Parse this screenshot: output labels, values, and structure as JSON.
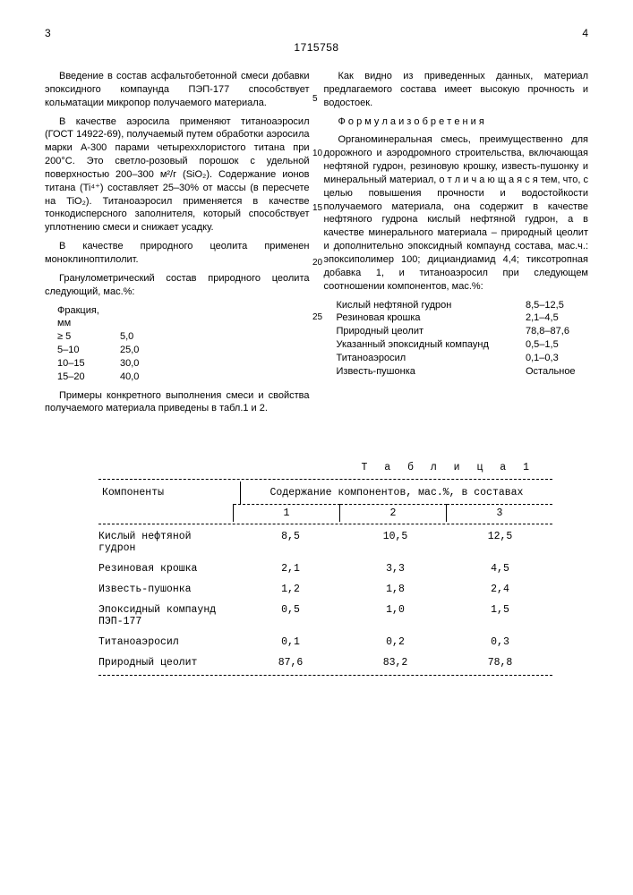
{
  "doc": {
    "page_left": "3",
    "page_right": "4",
    "doc_number": "1715758"
  },
  "line_marks": [
    "5",
    "10",
    "15",
    "20",
    "25"
  ],
  "left_col": {
    "p1": "Введение в состав асфальтобетонной смеси добавки эпоксидного компаунда ПЭП-177 способствует кольматации микропор получаемого материала.",
    "p2": "В качестве аэросила применяют титаноаэросил (ГОСТ 14922-69), получаемый путем обработки аэросила марки А-300 парами четыреххлористого титана при 200°С. Это светло-розовый порошок с удельной поверхностью 200–300 м²/г (SiO₂). Содержание ионов титана (Ti⁴⁺) составляет 25–30% от массы (в пересчете на TiO₂). Титаноаэросил применяется в качестве тонкодисперсного заполнителя, который способствует уплотнению смеси и снижает усадку.",
    "p3": "В качестве природного цеолита применен моноклиноптилолит.",
    "p4": "Гранулометрический состав природного цеолита следующий, мас.%:",
    "frac_label": "Фракция, мм",
    "fractions": [
      {
        "range": "≥ 5",
        "val": "5,0"
      },
      {
        "range": "5–10",
        "val": "25,0"
      },
      {
        "range": "10–15",
        "val": "30,0"
      },
      {
        "range": "15–20",
        "val": "40,0"
      }
    ],
    "p5": "Примеры конкретного выполнения смеси и свойства получаемого материала приведены в табл.1 и 2."
  },
  "right_col": {
    "p1": "Как видно из приведенных данных, материал предлагаемого состава имеет высокую прочность и водостоек.",
    "formula_title": "Ф о р м у л а  и з о б р е т е н и я",
    "p2": "Органоминеральная смесь, преимущественно для дорожного и аэродромного строительства, включающая нефтяной гудрон, резиновую крошку, известь-пушонку и минеральный материал, о т л и ч а ю щ а я с я  тем, что, с целью повышения прочности и водостойкости получаемого материала, она содержит в качестве нефтяного гудрона кислый нефтяной гудрон, а в качестве минерального материала – природный цеолит и дополнительно эпоксидный компаунд состава, мас.ч.: эпоксиполимер 100; дициандиамид 4,4; тиксотропная добавка 1, и титаноаэросил при следующем соотношении компонентов, мас.%:",
    "components": [
      {
        "name": "Кислый нефтяной гудрон",
        "val": "8,5–12,5"
      },
      {
        "name": "Резиновая крошка",
        "val": "2,1–4,5"
      },
      {
        "name": "Природный цеолит",
        "val": "78,8–87,6"
      },
      {
        "name": "Указанный эпоксидный компаунд",
        "val": "0,5–1,5"
      },
      {
        "name": "Титаноаэросил",
        "val": "0,1–0,3"
      },
      {
        "name": "Известь-пушонка",
        "val": "Остальное"
      }
    ]
  },
  "table1": {
    "title": "Т а б л и ц а 1",
    "head_component": "Компоненты",
    "head_content": "Содержание компонентов, мас.%, в составах",
    "cols": [
      "1",
      "2",
      "3"
    ],
    "rows": [
      {
        "name": "Кислый нефтяной гудрон",
        "v": [
          "8,5",
          "10,5",
          "12,5"
        ]
      },
      {
        "name": "Резиновая крошка",
        "v": [
          "2,1",
          "3,3",
          "4,5"
        ]
      },
      {
        "name": "Известь-пушонка",
        "v": [
          "1,2",
          "1,8",
          "2,4"
        ]
      },
      {
        "name": "Эпоксидный компаунд ПЭП-177",
        "v": [
          "0,5",
          "1,0",
          "1,5"
        ]
      },
      {
        "name": "Титаноаэросил",
        "v": [
          "0,1",
          "0,2",
          "0,3"
        ]
      },
      {
        "name": "Природный цеолит",
        "v": [
          "87,6",
          "83,2",
          "78,8"
        ]
      }
    ]
  }
}
